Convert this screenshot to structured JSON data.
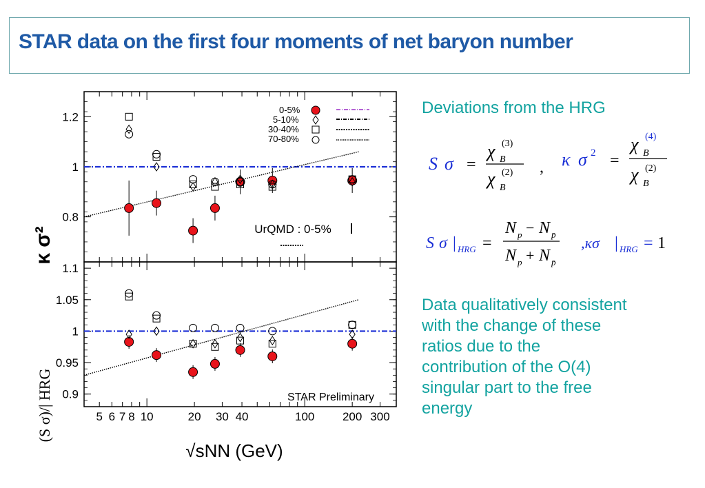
{
  "title": "STAR data on the first four moments of net baryon number",
  "side_text": {
    "heading": "Deviations from the HRG",
    "conclusion_lines": [
      "Data qualitatively consistent",
      "with the  change of these",
      "ratios   due to the",
      "contribution of the O(4)",
      "singular part  to the  free",
      "energy"
    ]
  },
  "formulas": {
    "chi": "χ",
    "B": "B",
    "o3": "(3)",
    "o4": "(4)",
    "o2": "(2)",
    "S": "S",
    "sigma": "σ",
    "kappa": "κ",
    "eq": "=",
    "comma": ",",
    "sq": "2",
    "N": "N",
    "p": "p",
    "pbar": "p̄",
    "minus": "−",
    "plus": "+",
    "bar": "|",
    "HRG": "HRG",
    "comma_kappa": ",κσ",
    "one": "1"
  },
  "colors": {
    "title": "#1f5aa6",
    "text": "#13a3a0",
    "formula": "#1a2fd6",
    "marker_0_5": "#e8141b",
    "reference_line": "#1c2fd6"
  },
  "chart_data": [
    {
      "type": "scatter",
      "ylabel": "κ σ²",
      "ylim": [
        0.62,
        1.3
      ],
      "xscale": "log",
      "xlim": [
        4,
        380
      ],
      "yticks": [
        0.8,
        1,
        1.2
      ],
      "ytick_labels": [
        "0.8",
        "1",
        "1.2"
      ],
      "reference_line_y": 1,
      "annotation": "UrQMD : 0-5%",
      "legend": {
        "position": "top-right",
        "entries": [
          "0-5%",
          "5-10%",
          "30-40%",
          "70-80%"
        ]
      },
      "x": [
        7.7,
        11.5,
        19.6,
        27,
        39,
        62.4,
        200
      ],
      "series": [
        {
          "name": "0-5%",
          "marker": "filled-circle",
          "values": [
            0.835,
            0.855,
            0.745,
            0.835,
            0.94,
            0.945,
            0.945
          ]
        },
        {
          "name": "5-10%",
          "marker": "diamond",
          "values": [
            1.15,
            1.0,
            0.92,
            0.94,
            0.95,
            0.93,
            0.94
          ]
        },
        {
          "name": "30-40%",
          "marker": "square",
          "values": [
            1.2,
            1.04,
            0.93,
            0.92,
            0.93,
            0.92,
            0.95
          ]
        },
        {
          "name": "70-80%",
          "marker": "open-circle",
          "values": [
            1.13,
            1.05,
            0.95,
            0.94,
            0.94,
            0.93,
            0.95
          ]
        }
      ]
    },
    {
      "type": "scatter",
      "ylabel": "(S σ)/| HRG",
      "xlabel": "√sNN (GeV)",
      "ylim": [
        0.88,
        1.11
      ],
      "xscale": "log",
      "xlim": [
        4,
        380
      ],
      "yticks": [
        0.9,
        0.95,
        1,
        1.05,
        1.1
      ],
      "ytick_labels": [
        "0.9",
        "0.95",
        "1",
        "1.05",
        "1.1"
      ],
      "xticks": [
        5,
        6,
        7,
        8,
        10,
        20,
        30,
        40,
        100,
        200,
        300
      ],
      "xtick_labels": [
        "5",
        "6",
        "7",
        "8",
        "10",
        "20",
        "30",
        "40",
        "100",
        "200",
        "300"
      ],
      "reference_line_y": 1,
      "annotation": "STAR Preliminary",
      "x": [
        7.7,
        11.5,
        19.6,
        27,
        39,
        62.4,
        200
      ],
      "series": [
        {
          "name": "0-5%",
          "marker": "filled-circle",
          "values": [
            0.983,
            0.962,
            0.935,
            0.948,
            0.97,
            0.96,
            0.98
          ]
        },
        {
          "name": "5-10%",
          "marker": "diamond",
          "values": [
            0.995,
            1.0,
            0.98,
            0.98,
            0.99,
            0.985,
            0.995
          ]
        },
        {
          "name": "30-40%",
          "marker": "square",
          "values": [
            1.055,
            1.02,
            0.98,
            0.975,
            0.985,
            0.98,
            1.01
          ]
        },
        {
          "name": "70-80%",
          "marker": "open-circle",
          "values": [
            1.06,
            1.025,
            1.005,
            1.005,
            1.005,
            1.0,
            1.01
          ]
        }
      ]
    }
  ]
}
